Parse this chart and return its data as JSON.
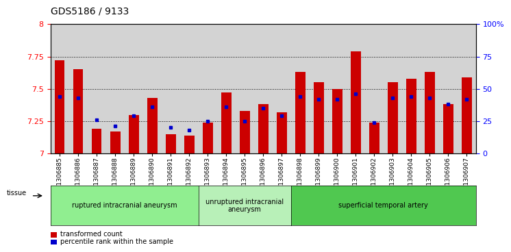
{
  "title": "GDS5186 / 9133",
  "samples": [
    "GSM1306885",
    "GSM1306886",
    "GSM1306887",
    "GSM1306888",
    "GSM1306889",
    "GSM1306890",
    "GSM1306891",
    "GSM1306892",
    "GSM1306893",
    "GSM1306894",
    "GSM1306895",
    "GSM1306896",
    "GSM1306897",
    "GSM1306898",
    "GSM1306899",
    "GSM1306900",
    "GSM1306901",
    "GSM1306902",
    "GSM1306903",
    "GSM1306904",
    "GSM1306905",
    "GSM1306906",
    "GSM1306907"
  ],
  "bar_heights": [
    7.72,
    7.65,
    7.19,
    7.17,
    7.3,
    7.43,
    7.15,
    7.14,
    7.24,
    7.47,
    7.33,
    7.38,
    7.32,
    7.63,
    7.55,
    7.5,
    7.79,
    7.24,
    7.55,
    7.58,
    7.63,
    7.38,
    7.59
  ],
  "blue_marker_y": [
    7.44,
    7.43,
    7.26,
    7.21,
    7.29,
    7.36,
    7.2,
    7.18,
    7.25,
    7.36,
    7.25,
    7.35,
    7.29,
    7.44,
    7.42,
    7.42,
    7.46,
    7.24,
    7.43,
    7.44,
    7.43,
    7.38,
    7.42
  ],
  "ylim": [
    7.0,
    8.0
  ],
  "yticks_left": [
    7.0,
    7.25,
    7.5,
    7.75,
    8.0
  ],
  "yticks_right_pct": [
    0,
    25,
    50,
    75,
    100
  ],
  "groups": [
    {
      "label": "ruptured intracranial aneurysm",
      "start": 0,
      "end": 8,
      "color": "#90ee90"
    },
    {
      "label": "unruptured intracranial\naneurysm",
      "start": 8,
      "end": 13,
      "color": "#b8f0b8"
    },
    {
      "label": "superficial temporal artery",
      "start": 13,
      "end": 23,
      "color": "#50c850"
    }
  ],
  "bar_color": "#cc0000",
  "blue_color": "#0000cc",
  "bg_color": "#d3d3d3",
  "plot_bg": "#ffffff",
  "grid_color": "#000000"
}
